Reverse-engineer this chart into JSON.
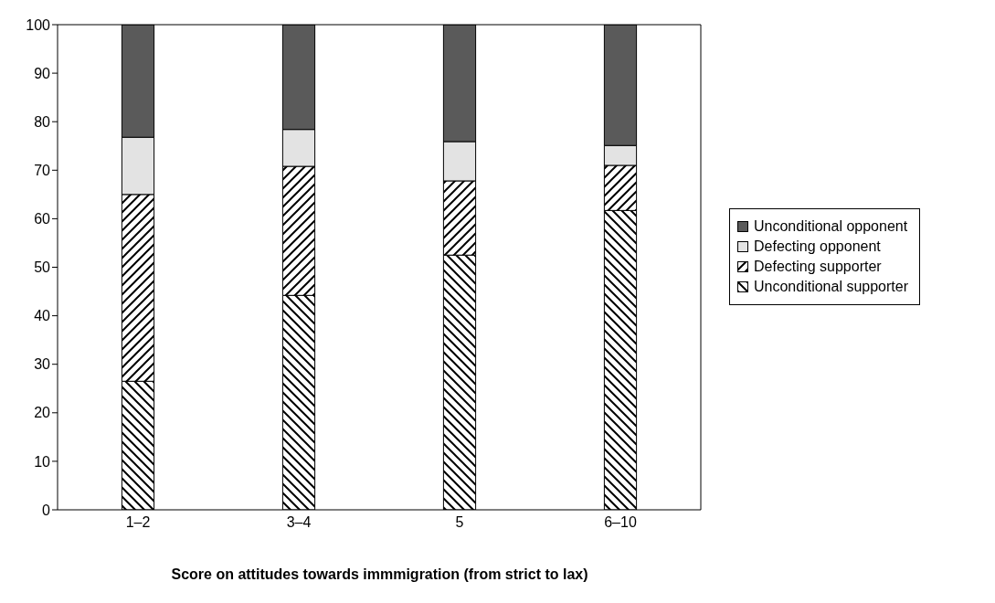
{
  "chart_data": {
    "type": "bar",
    "stacked": true,
    "xlabel": "Score on attitudes towards immmigration (from strict to lax)",
    "categories": [
      "1–2",
      "3–4",
      "5",
      "6–10"
    ],
    "series": [
      {
        "name": "Unconditional supporter",
        "color": "#000000",
        "values": [
          26.5,
          44.2,
          52.5,
          61.7
        ]
      },
      {
        "name": "Defecting supporter",
        "color": "#000000",
        "values": [
          38.5,
          26.6,
          15.3,
          9.3
        ]
      },
      {
        "name": "Defecting opponent",
        "color": "#e3e3e3",
        "values": [
          11.8,
          7.6,
          8.1,
          4.1
        ]
      },
      {
        "name": "Unconditional opponent",
        "color": "#5a5a5a",
        "values": [
          23.2,
          21.6,
          24.1,
          24.9
        ]
      }
    ],
    "ylim": [
      0,
      100
    ],
    "yticks": [
      0,
      10,
      20,
      30,
      40,
      50,
      60,
      70,
      80,
      90,
      100
    ],
    "legend": "right"
  }
}
